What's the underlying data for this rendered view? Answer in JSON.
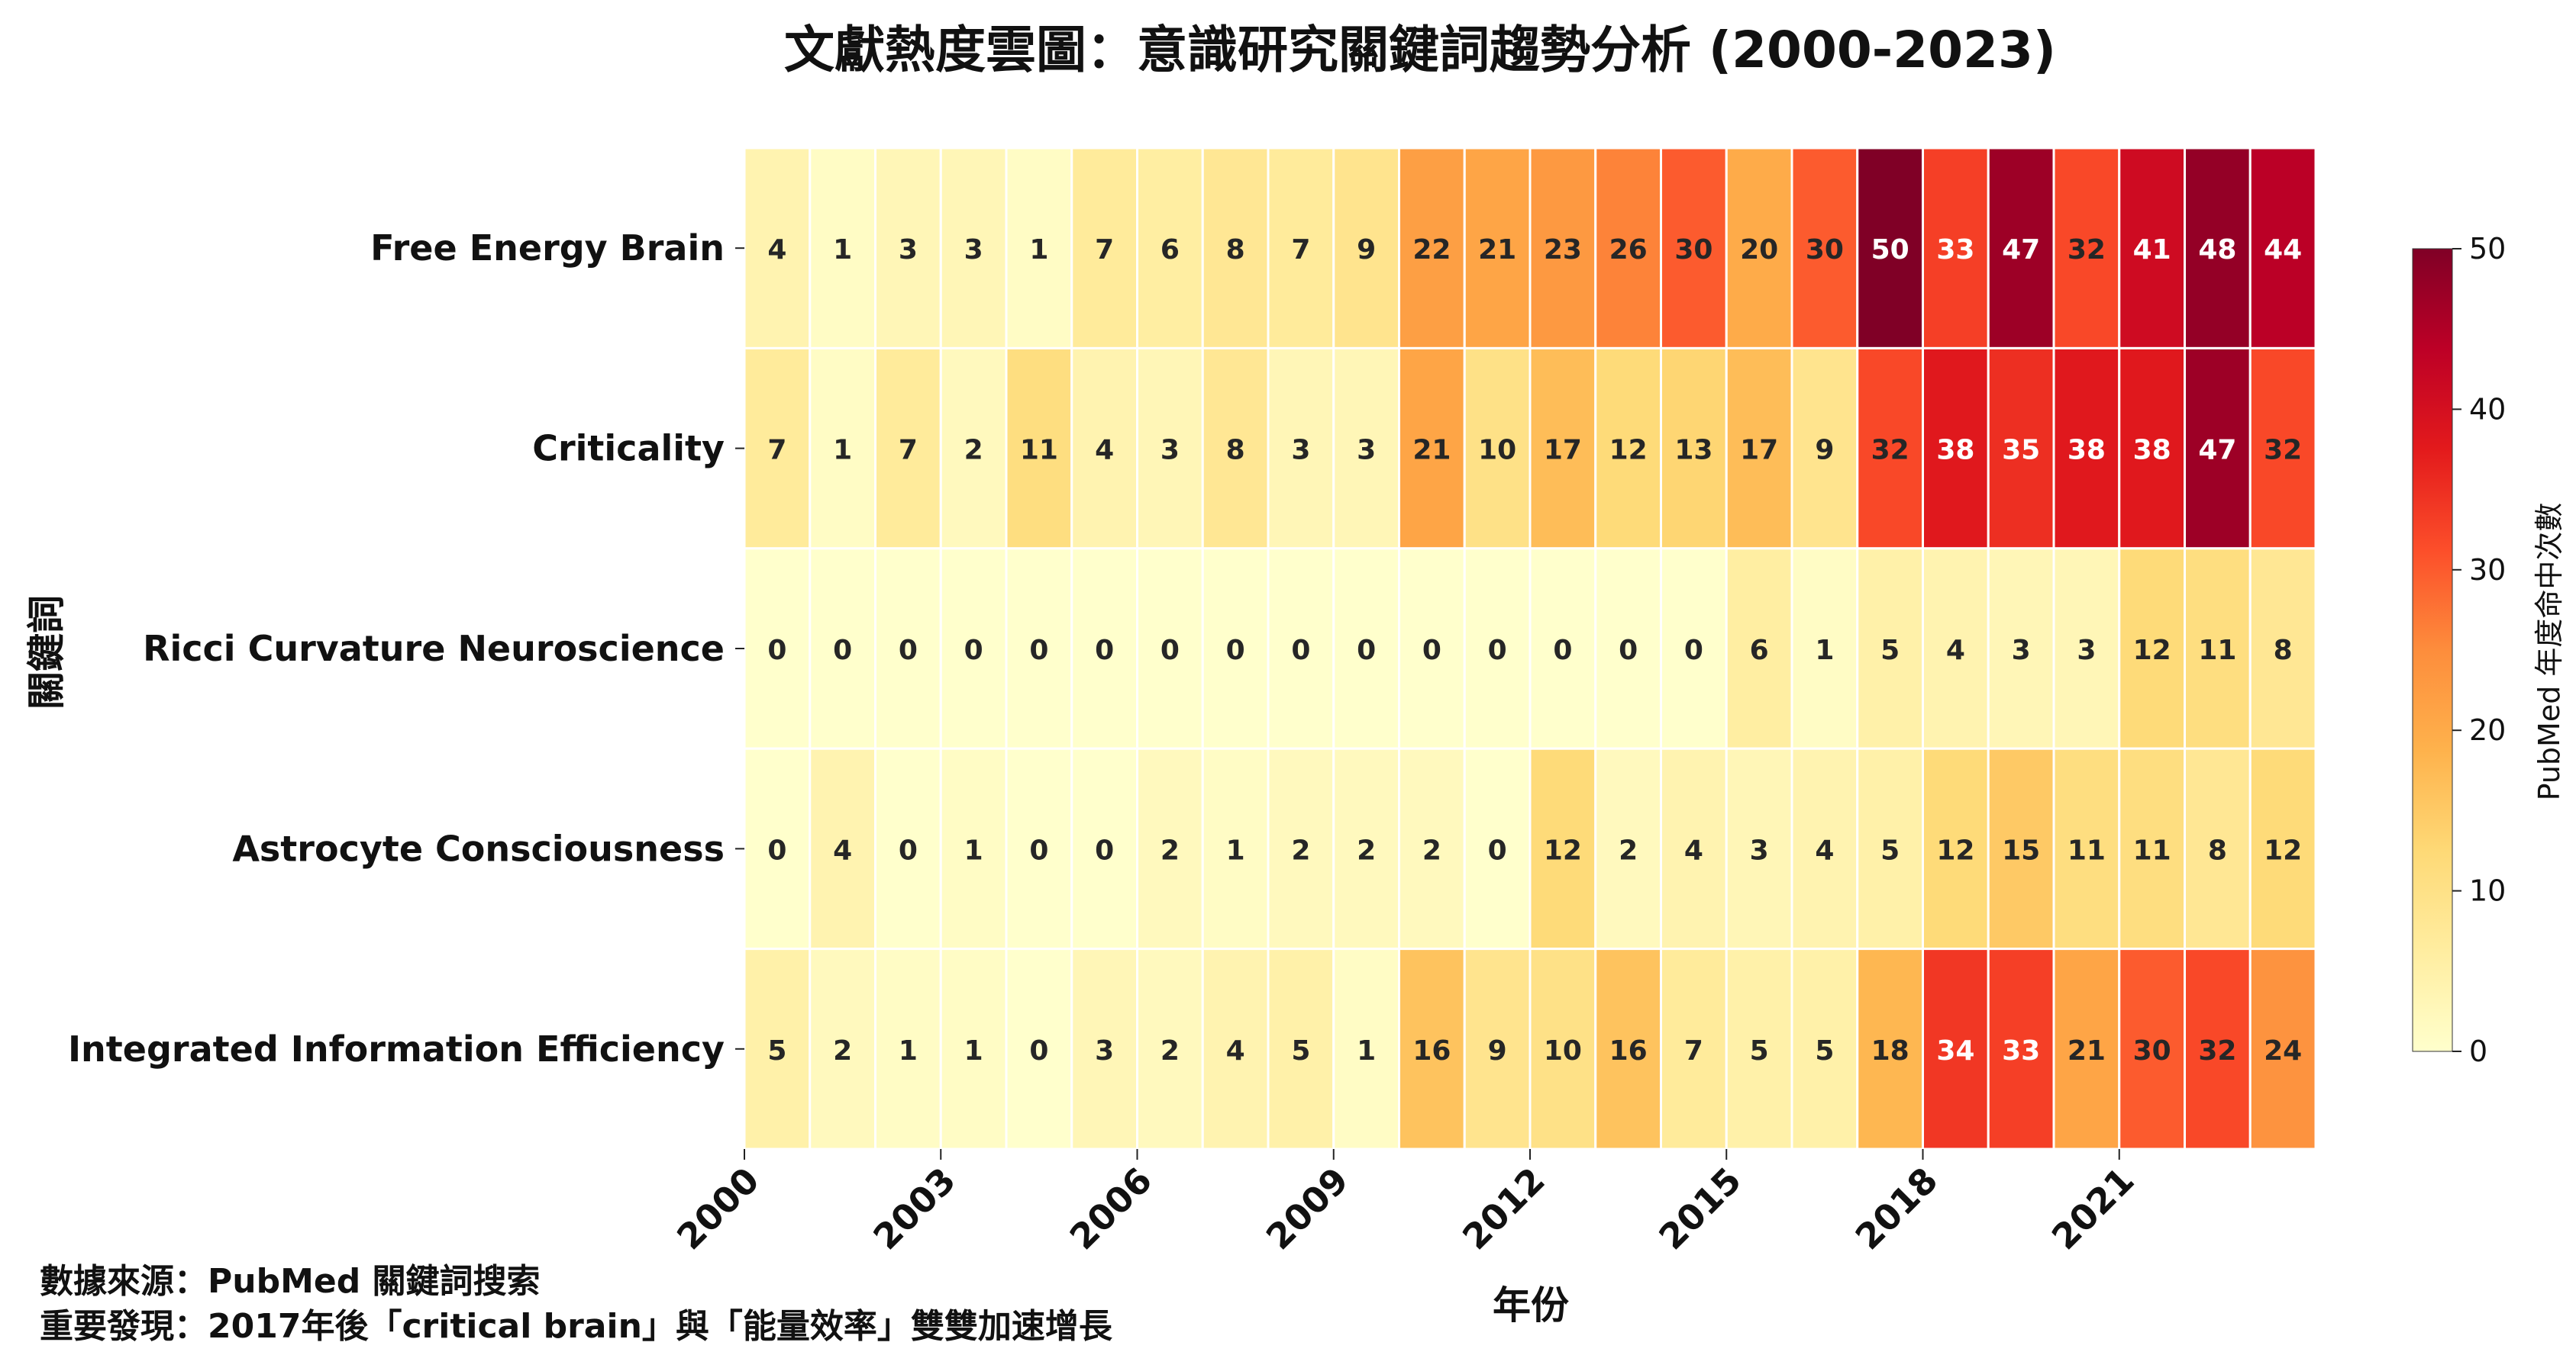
{
  "chart_data": {
    "type": "heatmap",
    "title": "文獻熱度雲圖：意識研究關鍵詞趨勢分析 (2000-2023)",
    "xlabel": "年份",
    "ylabel": "關鍵詞",
    "colorbar_label": "PubMed 年度命中次數",
    "colorbar_range": [
      0,
      50
    ],
    "colorbar_ticks": [
      0,
      10,
      20,
      30,
      40,
      50
    ],
    "colormap": "YlOrRd",
    "color_stops": [
      "#ffffcc",
      "#ffeda0",
      "#fed976",
      "#feb24c",
      "#fd8d3c",
      "#fc4e2a",
      "#e31a1c",
      "#bd0026",
      "#800026"
    ],
    "x": [
      2000,
      2001,
      2002,
      2003,
      2004,
      2005,
      2006,
      2007,
      2008,
      2009,
      2010,
      2011,
      2012,
      2013,
      2014,
      2015,
      2016,
      2017,
      2018,
      2019,
      2020,
      2021,
      2022,
      2023
    ],
    "x_tick_labels": [
      "2000",
      "2003",
      "2006",
      "2009",
      "2012",
      "2015",
      "2018",
      "2021"
    ],
    "x_tick_years": [
      2000,
      2003,
      2006,
      2009,
      2012,
      2015,
      2018,
      2021
    ],
    "categories": [
      "Free Energy Brain",
      "Criticality",
      "Ricci Curvature Neuroscience",
      "Astrocyte Consciousness",
      "Integrated Information Efficiency"
    ],
    "values": [
      [
        4,
        1,
        3,
        3,
        1,
        7,
        6,
        8,
        7,
        9,
        22,
        21,
        23,
        26,
        30,
        20,
        30,
        50,
        33,
        47,
        32,
        41,
        48,
        44
      ],
      [
        7,
        1,
        7,
        2,
        11,
        4,
        3,
        8,
        3,
        3,
        21,
        10,
        17,
        12,
        13,
        17,
        9,
        32,
        38,
        35,
        38,
        38,
        47,
        32
      ],
      [
        0,
        0,
        0,
        0,
        0,
        0,
        0,
        0,
        0,
        0,
        0,
        0,
        0,
        0,
        0,
        6,
        1,
        5,
        4,
        3,
        3,
        12,
        11,
        8
      ],
      [
        0,
        4,
        0,
        1,
        0,
        0,
        2,
        1,
        2,
        2,
        2,
        0,
        12,
        2,
        4,
        3,
        4,
        5,
        12,
        15,
        11,
        11,
        8,
        12
      ],
      [
        5,
        2,
        1,
        1,
        0,
        3,
        2,
        4,
        5,
        1,
        16,
        9,
        10,
        16,
        7,
        5,
        5,
        18,
        34,
        33,
        21,
        30,
        32,
        24
      ]
    ]
  },
  "footnotes": {
    "source": "數據來源：PubMed 關鍵詞搜索",
    "finding": "重要發現：2017年後「critical brain」與「能量效率」雙雙加速增長"
  }
}
